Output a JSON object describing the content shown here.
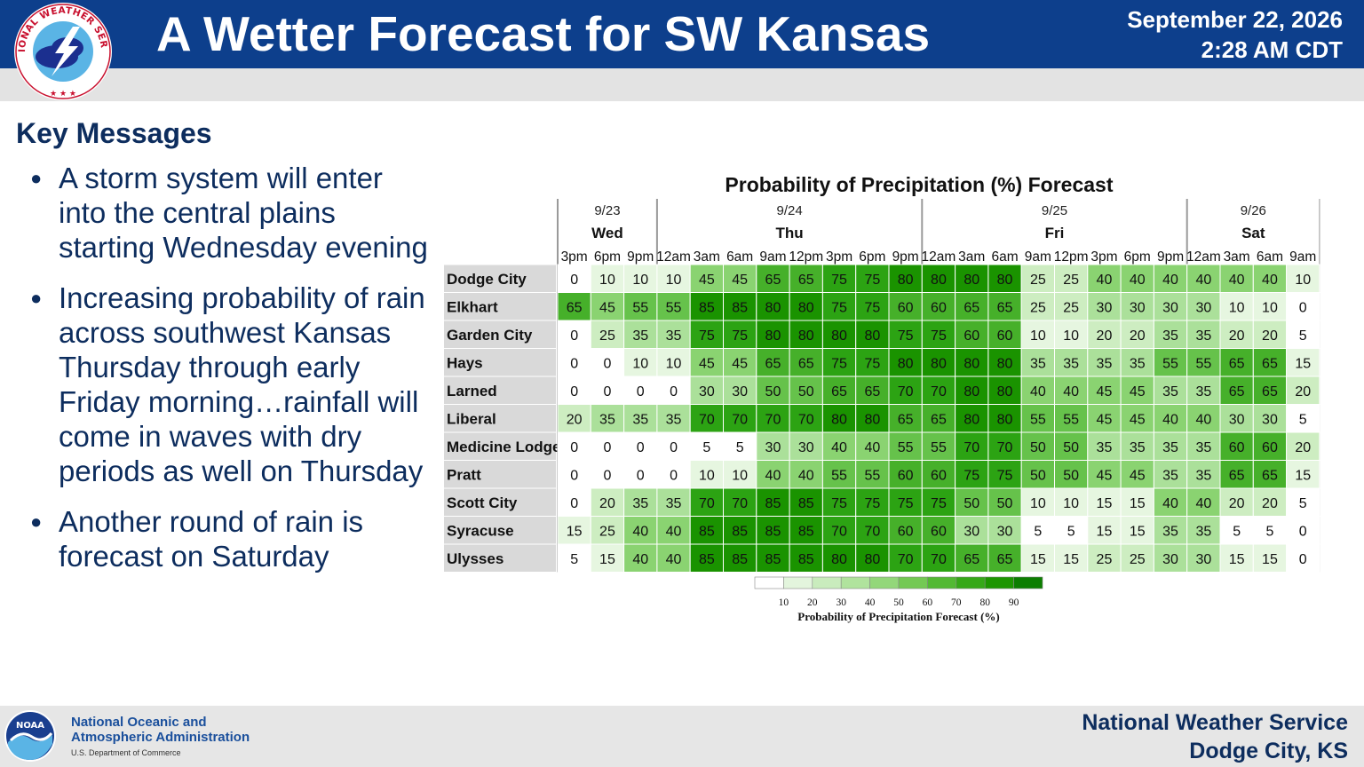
{
  "header": {
    "title": "A Wetter Forecast for SW Kansas",
    "date": "September 22, 2026",
    "time": "2:28 AM CDT",
    "logo_text": "NATIONAL WEATHER SERVICE"
  },
  "key_messages": {
    "title": "Key Messages",
    "items": [
      "A storm system will enter into the central plains starting Wednesday evening",
      "Increasing probability of rain across southwest Kansas Thursday through early Friday morning…rainfall will come in waves with dry periods as well on Thursday",
      "Another round of rain is forecast on Saturday"
    ]
  },
  "chart_data": {
    "type": "heatmap",
    "title": "Probability of Precipitation (%) Forecast",
    "days": [
      {
        "date": "9/23",
        "day": "Wed",
        "span": 3
      },
      {
        "date": "9/24",
        "day": "Thu",
        "span": 8
      },
      {
        "date": "9/25",
        "day": "Fri",
        "span": 8
      },
      {
        "date": "9/26",
        "day": "Sat",
        "span": 4
      }
    ],
    "times": [
      "3pm",
      "6pm",
      "9pm",
      "12am",
      "3am",
      "6am",
      "9am",
      "12pm",
      "3pm",
      "6pm",
      "9pm",
      "12am",
      "3am",
      "6am",
      "9am",
      "12pm",
      "3pm",
      "6pm",
      "9pm",
      "12am",
      "3am",
      "6am",
      "9am"
    ],
    "locations": [
      "Dodge City",
      "Elkhart",
      "Garden City",
      "Hays",
      "Larned",
      "Liberal",
      "Medicine Lodge",
      "Pratt",
      "Scott City",
      "Syracuse",
      "Ulysses"
    ],
    "values": [
      [
        0,
        10,
        10,
        10,
        45,
        45,
        65,
        65,
        75,
        75,
        80,
        80,
        80,
        80,
        25,
        25,
        40,
        40,
        40,
        40,
        40,
        40,
        10
      ],
      [
        65,
        45,
        55,
        55,
        85,
        85,
        80,
        80,
        75,
        75,
        60,
        60,
        65,
        65,
        25,
        25,
        30,
        30,
        30,
        30,
        10,
        10,
        0
      ],
      [
        0,
        25,
        35,
        35,
        75,
        75,
        80,
        80,
        80,
        80,
        75,
        75,
        60,
        60,
        10,
        10,
        20,
        20,
        35,
        35,
        20,
        20,
        5
      ],
      [
        0,
        0,
        10,
        10,
        45,
        45,
        65,
        65,
        75,
        75,
        80,
        80,
        80,
        80,
        35,
        35,
        35,
        35,
        55,
        55,
        65,
        65,
        15
      ],
      [
        0,
        0,
        0,
        0,
        30,
        30,
        50,
        50,
        65,
        65,
        70,
        70,
        80,
        80,
        40,
        40,
        45,
        45,
        35,
        35,
        65,
        65,
        20
      ],
      [
        20,
        35,
        35,
        35,
        70,
        70,
        70,
        70,
        80,
        80,
        65,
        65,
        80,
        80,
        55,
        55,
        45,
        45,
        40,
        40,
        30,
        30,
        5
      ],
      [
        0,
        0,
        0,
        0,
        5,
        5,
        30,
        30,
        40,
        40,
        55,
        55,
        70,
        70,
        50,
        50,
        35,
        35,
        35,
        35,
        60,
        60,
        20
      ],
      [
        0,
        0,
        0,
        0,
        10,
        10,
        40,
        40,
        55,
        55,
        60,
        60,
        75,
        75,
        50,
        50,
        45,
        45,
        35,
        35,
        65,
        65,
        15
      ],
      [
        0,
        20,
        35,
        35,
        70,
        70,
        85,
        85,
        75,
        75,
        75,
        75,
        50,
        50,
        10,
        10,
        15,
        15,
        40,
        40,
        20,
        20,
        5
      ],
      [
        15,
        25,
        40,
        40,
        85,
        85,
        85,
        85,
        70,
        70,
        60,
        60,
        30,
        30,
        5,
        5,
        15,
        15,
        35,
        35,
        5,
        5,
        0
      ],
      [
        5,
        15,
        40,
        40,
        85,
        85,
        85,
        85,
        80,
        80,
        70,
        70,
        65,
        65,
        15,
        15,
        25,
        25,
        30,
        30,
        15,
        15,
        0
      ]
    ],
    "legend": {
      "title": "Probability of Precipitation Forecast (%)",
      "ticks": [
        10,
        20,
        30,
        40,
        50,
        60,
        70,
        80,
        90
      ],
      "colors": [
        "#ffffff",
        "#e3f5dd",
        "#c9ecbd",
        "#b0e39d",
        "#93d77a",
        "#74c954",
        "#53b933",
        "#36a818",
        "#1d9600",
        "#0c7e00"
      ]
    },
    "color_scale": {
      "thresholds": [
        10,
        20,
        30,
        40,
        50,
        60,
        70,
        80
      ],
      "colors": [
        "#ffffff",
        "#e6f6e0",
        "#cdedc1",
        "#abe09a",
        "#8ad371",
        "#66c24b",
        "#46b02a",
        "#2ca313",
        "#1a9300"
      ]
    }
  },
  "footer": {
    "noaa_line1": "National Oceanic and",
    "noaa_line2": "Atmospheric Administration",
    "noaa_sub": "U.S. Department of Commerce",
    "noaa_logo_text": "NOAA",
    "office_line1": "National Weather Service",
    "office_line2": "Dodge City, KS"
  }
}
